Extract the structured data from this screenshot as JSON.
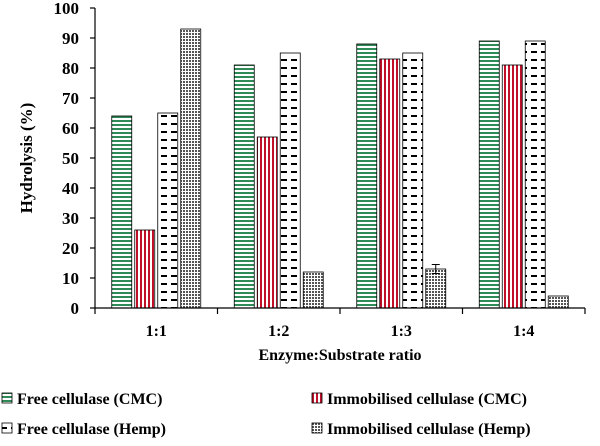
{
  "chart_data": {
    "type": "bar",
    "title": "",
    "xlabel": "Enzyme:Substrate ratio",
    "ylabel": "Hydrolysis (%)",
    "ylim": [
      0,
      100
    ],
    "yticks": [
      0,
      10,
      20,
      30,
      40,
      50,
      60,
      70,
      80,
      90,
      100
    ],
    "categories": [
      "1:1",
      "1:2",
      "1:3",
      "1:4"
    ],
    "grid": false,
    "legend_position": "bottom",
    "series": [
      {
        "name": "Free cellulase (CMC)",
        "pattern": "hstripe-green",
        "color": "#2e8b57",
        "values": [
          64,
          81,
          88,
          89
        ],
        "errors": [
          0,
          0,
          0,
          0
        ]
      },
      {
        "name": "Immobilised cellulase (CMC)",
        "pattern": "vstripe-red",
        "color": "#c0102a",
        "values": [
          26,
          57,
          83,
          81
        ],
        "errors": [
          0,
          0,
          0,
          0
        ]
      },
      {
        "name": "Free cellulase (Hemp)",
        "pattern": "dash",
        "color": "#000000",
        "values": [
          65,
          85,
          85,
          89
        ],
        "errors": [
          0,
          0,
          0,
          0
        ]
      },
      {
        "name": "Immobilised cellulase (Hemp)",
        "pattern": "crosshatch",
        "color": "#555555",
        "values": [
          93,
          12,
          13,
          4
        ],
        "errors": [
          0,
          0,
          1.5,
          0
        ]
      }
    ]
  }
}
